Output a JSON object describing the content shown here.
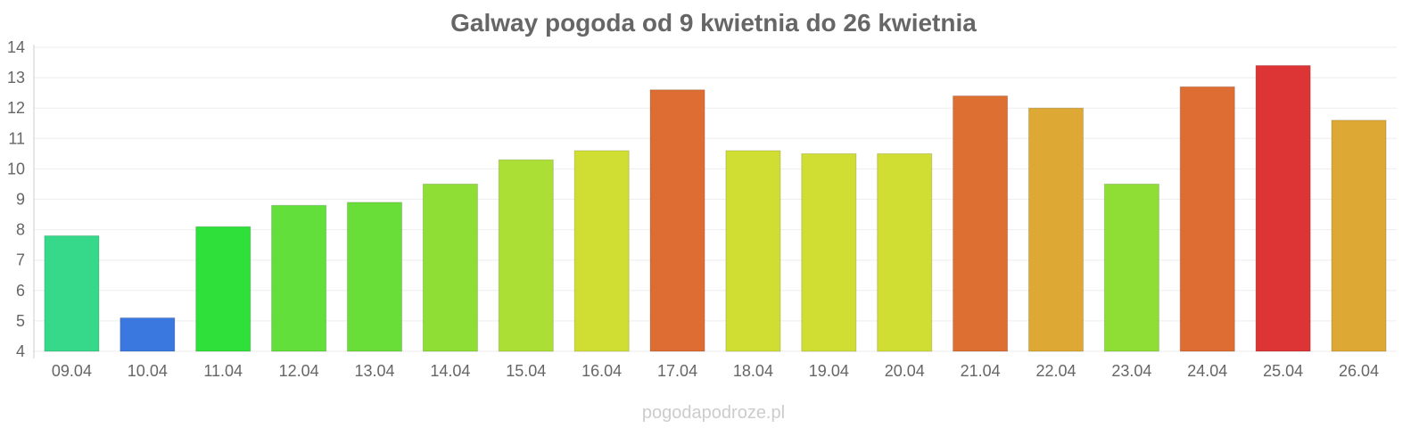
{
  "chart_data": {
    "type": "bar",
    "title": "Galway pogoda od 9 kwietnia do 26 kwietnia",
    "xlabel": "",
    "ylabel": "",
    "ylim": [
      4,
      14
    ],
    "yticks": [
      4,
      5,
      6,
      7,
      8,
      9,
      10,
      11,
      12,
      13,
      14
    ],
    "grid": true,
    "categories": [
      "09.04",
      "10.04",
      "11.04",
      "12.04",
      "13.04",
      "14.04",
      "15.04",
      "16.04",
      "17.04",
      "18.04",
      "19.04",
      "20.04",
      "21.04",
      "22.04",
      "23.04",
      "24.04",
      "25.04",
      "26.04"
    ],
    "values": [
      7.8,
      5.1,
      8.1,
      8.8,
      8.9,
      9.5,
      10.3,
      10.6,
      12.6,
      10.6,
      10.5,
      10.5,
      12.4,
      12.0,
      9.5,
      12.7,
      13.4,
      11.6
    ],
    "colors": [
      "#36d98a",
      "#3a78e0",
      "#2fe03a",
      "#62df3a",
      "#6ade38",
      "#8ede35",
      "#acdf35",
      "#d0de33",
      "#dd6d33",
      "#d0de33",
      "#d0de33",
      "#d0de33",
      "#dd6f33",
      "#dda833",
      "#8ede35",
      "#dd6d33",
      "#dd3535",
      "#dda833"
    ]
  },
  "watermark": "pogodapodroze.pl"
}
